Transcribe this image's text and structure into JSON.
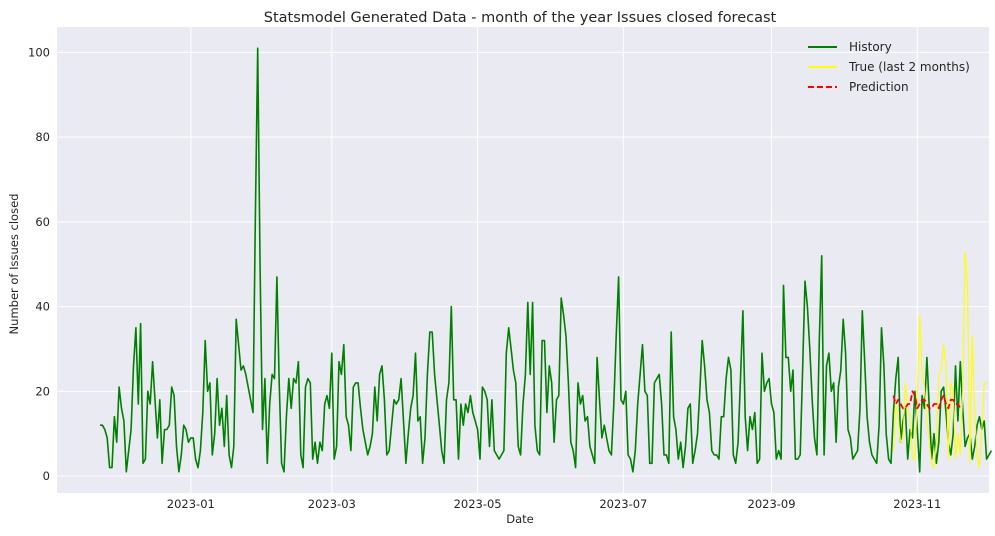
{
  "chart_data": {
    "type": "line",
    "title": "Statsmodel Generated Data - month of the year Issues closed forecast",
    "xlabel": "Date",
    "ylabel": "Number of Issues closed",
    "xlim": [
      "2023-11-06",
      "2023-12-01"
    ],
    "ylim": [
      -4,
      106
    ],
    "grid": true,
    "legend_position": "top-right",
    "x_ticks": [
      "2023-01",
      "2023-03",
      "2023-05",
      "2023-07",
      "2023-09",
      "2023-11"
    ],
    "y_ticks": [
      0,
      20,
      40,
      60,
      80,
      100
    ],
    "series": [
      {
        "name": "History",
        "color": "#008000",
        "style": "solid",
        "start_date": "2022-11-24",
        "values": [
          12,
          12,
          11,
          9,
          2,
          2,
          14,
          8,
          21,
          16,
          13,
          1,
          6,
          11,
          26,
          35,
          17,
          36,
          3,
          4,
          20,
          17,
          27,
          18,
          9,
          18,
          3,
          11,
          11,
          12,
          21,
          19,
          7,
          1,
          5,
          12,
          11,
          8,
          9,
          9,
          4,
          2,
          6,
          15,
          32,
          20,
          22,
          5,
          10,
          23,
          12,
          16,
          7,
          19,
          5,
          2,
          7,
          37,
          31,
          25,
          26,
          24,
          21,
          18,
          15,
          60,
          101,
          49,
          11,
          23,
          3,
          17,
          24,
          23,
          47,
          22,
          3,
          1,
          14,
          23,
          16,
          23,
          22,
          27,
          5,
          2,
          21,
          23,
          22,
          4,
          8,
          3,
          8,
          6,
          17,
          19,
          16,
          29,
          4,
          7,
          27,
          24,
          31,
          14,
          12,
          6,
          21,
          22,
          22,
          16,
          11,
          8,
          5,
          7,
          10,
          21,
          13,
          24,
          26,
          18,
          5,
          6,
          12,
          18,
          17,
          18,
          23,
          13,
          3,
          10,
          16,
          19,
          29,
          13,
          14,
          3,
          9,
          24,
          34,
          34,
          24,
          18,
          12,
          6,
          3,
          18,
          22,
          40,
          18,
          18,
          4,
          17,
          12,
          17,
          15,
          19,
          15,
          13,
          11,
          4,
          21,
          20,
          18,
          7,
          18,
          6,
          5,
          4,
          5,
          6,
          29,
          35,
          30,
          25,
          22,
          7,
          5,
          17,
          24,
          41,
          24,
          41,
          12,
          6,
          5,
          32,
          32,
          15,
          26,
          22,
          8,
          18,
          19,
          42,
          38,
          33,
          22,
          8,
          6,
          2,
          22,
          17,
          19,
          13,
          14,
          7,
          5,
          3,
          28,
          18,
          9,
          12,
          9,
          6,
          5,
          17,
          33,
          47,
          18,
          17,
          20,
          5,
          4,
          1,
          6,
          17,
          24,
          31,
          20,
          19,
          3,
          3,
          22,
          23,
          24,
          17,
          5,
          5,
          3,
          34,
          14,
          11,
          4,
          8,
          2,
          7,
          16,
          17,
          3,
          6,
          10,
          20,
          32,
          26,
          18,
          15,
          6,
          5,
          5,
          4,
          14,
          14,
          23,
          28,
          25,
          5,
          3,
          8,
          23,
          39,
          14,
          6,
          14,
          11,
          15,
          3,
          4,
          29,
          20,
          22,
          23,
          17,
          15,
          4,
          6,
          4,
          45,
          28,
          28,
          20,
          25,
          4,
          4,
          5,
          25,
          46,
          40,
          30,
          18,
          9,
          5,
          32,
          52,
          5,
          26,
          29,
          20,
          22,
          8,
          21,
          25,
          37,
          29,
          11,
          9,
          4,
          5,
          6,
          16,
          39,
          27,
          14,
          8,
          5,
          4,
          3,
          12,
          35,
          26,
          10,
          4,
          3,
          15,
          23,
          28,
          8,
          13,
          16,
          4,
          11,
          9,
          20,
          11,
          1,
          19,
          16,
          28,
          16,
          4,
          10,
          3,
          8,
          20,
          21,
          15,
          8,
          5,
          10,
          26,
          13,
          27,
          16,
          7,
          9,
          10,
          4,
          7,
          12,
          14,
          11,
          13,
          4,
          5,
          6
        ]
      },
      {
        "name": "True (last 2 months)",
        "color": "#ffff00",
        "style": "solid",
        "start_date": "2023-10-22",
        "values": [
          6,
          17,
          14,
          8,
          9,
          22,
          16,
          14,
          4,
          4,
          19,
          38,
          25,
          21,
          13,
          8,
          3,
          2,
          8,
          24,
          25,
          31,
          26,
          4,
          22,
          20,
          4,
          10,
          5,
          20,
          53,
          45,
          3,
          33,
          15,
          5,
          2,
          11,
          22,
          22
        ]
      },
      {
        "name": "Prediction",
        "color": "#ff0000",
        "style": "dashed",
        "start_date": "2023-10-22",
        "values": [
          19,
          17,
          18,
          17,
          16,
          16,
          17,
          17,
          20,
          19,
          16,
          17,
          18,
          18,
          17,
          16,
          16,
          17,
          17,
          16,
          18,
          19,
          17,
          16,
          18,
          18,
          17,
          17,
          16
        ]
      }
    ]
  }
}
